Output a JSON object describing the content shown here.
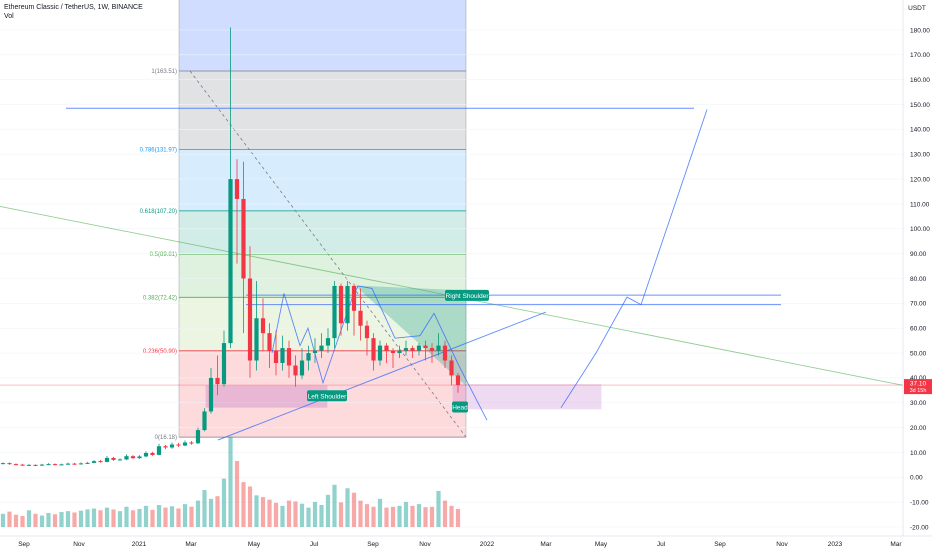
{
  "header": {
    "symbol_line": "Ethereum Classic / TetherUS, 1W, BINANCE",
    "indicator": "Vol"
  },
  "currency": "USDT",
  "price_tag": {
    "value": "37.10",
    "countdown": "3d 15h",
    "color": "#f23645"
  },
  "chart_data": {
    "type": "candlestick",
    "title": "Ethereum Classic / TetherUS, 1W, BINANCE",
    "y_ticks": [
      "180.00",
      "170.00",
      "160.00",
      "150.00",
      "140.00",
      "130.00",
      "120.00",
      "110.00",
      "100.00",
      "90.00",
      "80.00",
      "70.00",
      "60.00",
      "50.00",
      "40.00",
      "30.00",
      "20.00",
      "10.00",
      "0.00",
      "-10.00",
      "-20.00"
    ],
    "y_tick_values": [
      180,
      170,
      160,
      150,
      140,
      130,
      120,
      110,
      100,
      90,
      80,
      70,
      60,
      50,
      40,
      30,
      20,
      10,
      0,
      -10,
      -20
    ],
    "ylim": [
      -22.5,
      186.5
    ],
    "x_ticks": [
      "Sep",
      "Nov",
      "2021",
      "Mar",
      "May",
      "Jul",
      "Sep",
      "Nov",
      "2022",
      "Mar",
      "May",
      "Jul",
      "Sep",
      "Nov",
      "2023",
      "Mar"
    ],
    "fib_levels": [
      {
        "label": "1(163.51)",
        "value": 163.51,
        "color": "#787b86"
      },
      {
        "label": "0.786(131.97)",
        "value": 131.97,
        "color": "#2196f3"
      },
      {
        "label": "0.618(107.20)",
        "value": 107.2,
        "color": "#089981"
      },
      {
        "label": "0.5(89.81)",
        "value": 89.81,
        "color": "#4caf50"
      },
      {
        "label": "0.382(72.42)",
        "value": 72.42,
        "color": "#4caf50"
      },
      {
        "label": "0.236(50.90)",
        "value": 50.9,
        "color": "#f23645"
      },
      {
        "label": "0(16.18)",
        "value": 16.18,
        "color": "#787b86"
      }
    ],
    "annotations": [
      {
        "text": "Left Shoulder",
        "color": "#089981"
      },
      {
        "text": "Right Shoulder",
        "color": "#089981"
      },
      {
        "text": "Head",
        "color": "#089981"
      }
    ],
    "candles": [
      [
        5.5,
        5.7,
        6.0,
        5.2
      ],
      [
        5.7,
        5.3,
        6.0,
        5.0
      ],
      [
        5.3,
        5.1,
        5.6,
        4.8
      ],
      [
        5.1,
        4.9,
        5.4,
        4.6
      ],
      [
        4.9,
        5.0,
        5.3,
        4.7
      ],
      [
        5.0,
        4.8,
        5.2,
        4.5
      ],
      [
        4.8,
        5.1,
        5.4,
        4.6
      ],
      [
        5.1,
        5.3,
        5.7,
        4.9
      ],
      [
        5.3,
        5.0,
        5.6,
        4.8
      ],
      [
        5.0,
        5.2,
        5.5,
        4.8
      ],
      [
        5.2,
        5.5,
        5.9,
        5.0
      ],
      [
        5.5,
        5.3,
        5.8,
        5.0
      ],
      [
        5.3,
        5.6,
        6.0,
        5.1
      ],
      [
        5.6,
        5.8,
        6.2,
        5.4
      ],
      [
        5.8,
        6.5,
        6.9,
        5.6
      ],
      [
        6.5,
        6.2,
        7.0,
        5.9
      ],
      [
        6.2,
        7.8,
        8.6,
        6.0
      ],
      [
        7.8,
        7.0,
        8.2,
        6.6
      ],
      [
        7.0,
        7.2,
        7.6,
        6.7
      ],
      [
        7.2,
        8.5,
        9.3,
        6.9
      ],
      [
        8.5,
        7.7,
        8.9,
        7.3
      ],
      [
        7.7,
        8.4,
        8.9,
        7.4
      ],
      [
        8.4,
        9.8,
        10.5,
        8.0
      ],
      [
        9.8,
        9.0,
        10.3,
        8.6
      ],
      [
        9.0,
        12.5,
        13.5,
        8.8
      ],
      [
        12.5,
        12.0,
        13.0,
        11.3
      ],
      [
        12.0,
        13.2,
        14.0,
        11.5
      ],
      [
        13.2,
        12.8,
        13.9,
        12.2
      ],
      [
        12.8,
        14.0,
        14.8,
        12.5
      ],
      [
        14.0,
        13.7,
        14.6,
        13.1
      ],
      [
        13.7,
        19.0,
        20.0,
        13.4
      ],
      [
        19.0,
        26.5,
        27.8,
        18.5
      ],
      [
        26.5,
        40.0,
        44.0,
        25.6
      ],
      [
        40.0,
        37.5,
        49.0,
        33.0
      ],
      [
        37.5,
        54.0,
        59.0,
        36.5
      ],
      [
        54.0,
        120.0,
        181.0,
        52.0
      ],
      [
        120.0,
        112.0,
        128.0,
        86.0
      ],
      [
        112.0,
        80.0,
        127.0,
        58.0
      ],
      [
        80.0,
        47.0,
        93.0,
        40.0
      ],
      [
        47.0,
        64.0,
        79.0,
        43.0
      ],
      [
        64.0,
        58.0,
        72.0,
        51.0
      ],
      [
        58.0,
        51.0,
        62.0,
        44.0
      ],
      [
        51.0,
        46.0,
        59.0,
        41.0
      ],
      [
        46.0,
        52.0,
        57.0,
        43.0
      ],
      [
        52.0,
        45.0,
        55.0,
        40.0
      ],
      [
        45.0,
        41.0,
        49.0,
        36.5
      ],
      [
        41.0,
        47.0,
        52.0,
        39.5
      ],
      [
        47.0,
        50.0,
        53.0,
        43.0
      ],
      [
        50.0,
        51.0,
        56.0,
        46.0
      ],
      [
        51.0,
        53.0,
        58.0,
        48.0
      ],
      [
        53.0,
        56.0,
        60.0,
        50.0
      ],
      [
        56.0,
        77.0,
        79.0,
        52.0
      ],
      [
        77.0,
        62.0,
        78.0,
        57.0
      ],
      [
        62.0,
        77.0,
        79.0,
        59.0
      ],
      [
        77.0,
        67.0,
        78.0,
        57.0
      ],
      [
        67.0,
        61.0,
        76.0,
        55.0
      ],
      [
        61.0,
        56.0,
        63.0,
        49.0
      ],
      [
        56.0,
        47.0,
        58.0,
        43.0
      ],
      [
        47.0,
        53.0,
        55.0,
        45.0
      ],
      [
        53.0,
        51.0,
        54.0,
        46.0
      ],
      [
        51.0,
        50.0,
        52.0,
        44.0
      ],
      [
        50.0,
        51.0,
        53.0,
        48.0
      ],
      [
        51.0,
        52.0,
        55.0,
        49.0
      ],
      [
        52.0,
        51.0,
        53.0,
        48.0
      ],
      [
        51.0,
        53.0,
        54.0,
        49.0
      ],
      [
        53.0,
        52.0,
        55.0,
        47.0
      ],
      [
        52.0,
        51.0,
        54.0,
        46.0
      ],
      [
        51.0,
        53.0,
        58.0,
        49.0
      ],
      [
        53.0,
        47.0,
        55.0,
        44.0
      ],
      [
        47.0,
        41.0,
        49.0,
        37.0
      ],
      [
        41.0,
        37.1,
        42.0,
        34.0
      ]
    ],
    "volumes": [
      30,
      35,
      28,
      25,
      38,
      30,
      26,
      32,
      29,
      34,
      36,
      33,
      37,
      40,
      42,
      38,
      44,
      40,
      36,
      46,
      38,
      41,
      48,
      39,
      50,
      44,
      47,
      42,
      52,
      46,
      60,
      84,
      64,
      70,
      110,
      205,
      150,
      102,
      92,
      72,
      68,
      62,
      55,
      48,
      60,
      58,
      53,
      44,
      57,
      50,
      73,
      96,
      56,
      88,
      78,
      60,
      52,
      46,
      64,
      44,
      46,
      48,
      57,
      48,
      52,
      45,
      46,
      82,
      60,
      48,
      41
    ]
  }
}
